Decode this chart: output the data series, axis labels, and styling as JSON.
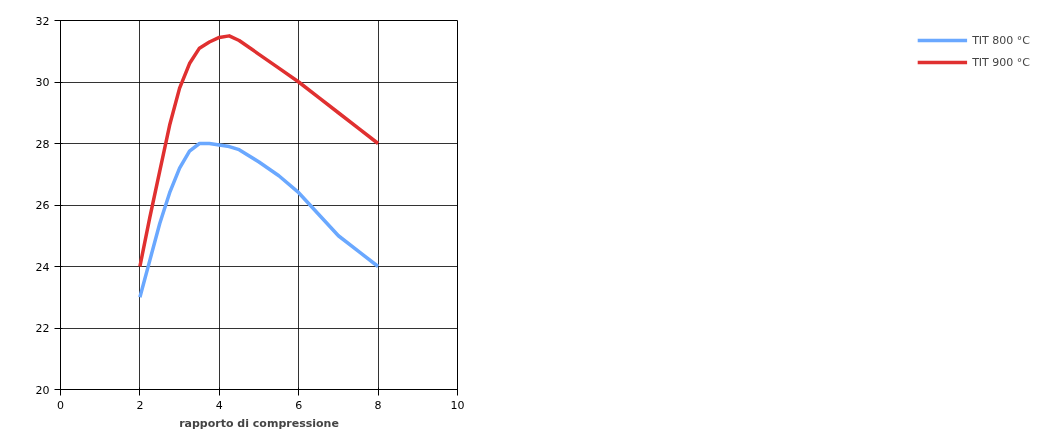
{
  "chart_data": {
    "type": "line",
    "xlabel": "rapporto di compressione",
    "x": [
      2,
      2.25,
      2.5,
      2.75,
      3,
      3.25,
      3.5,
      3.75,
      4,
      4.25,
      4.5,
      5,
      5.5,
      6,
      6.5,
      7,
      7.5,
      8
    ],
    "series": [
      {
        "name": "TIT 800 °C",
        "color": "#6aa8ff",
        "values": [
          23,
          24.2,
          25.4,
          26.4,
          27.2,
          27.75,
          28,
          28,
          27.95,
          27.9,
          27.8,
          27.4,
          26.95,
          26.4,
          25.7,
          25,
          24.5,
          24
        ]
      },
      {
        "name": "TIT 900 °C",
        "color": "#e03030",
        "values": [
          24,
          25.6,
          27.1,
          28.6,
          29.8,
          30.6,
          31.1,
          31.3,
          31.45,
          31.5,
          31.35,
          30.9,
          30.45,
          30,
          29.5,
          29,
          28.5,
          28
        ]
      }
    ],
    "xlim": [
      0,
      10
    ],
    "xticks": [
      0,
      2,
      4,
      6,
      8,
      10
    ],
    "ylim": [
      20,
      32
    ],
    "yticks": [
      20,
      22,
      24,
      26,
      28,
      30,
      32
    ],
    "grid": true,
    "legend": "right",
    "marker": "none",
    "line_style": "solid"
  }
}
